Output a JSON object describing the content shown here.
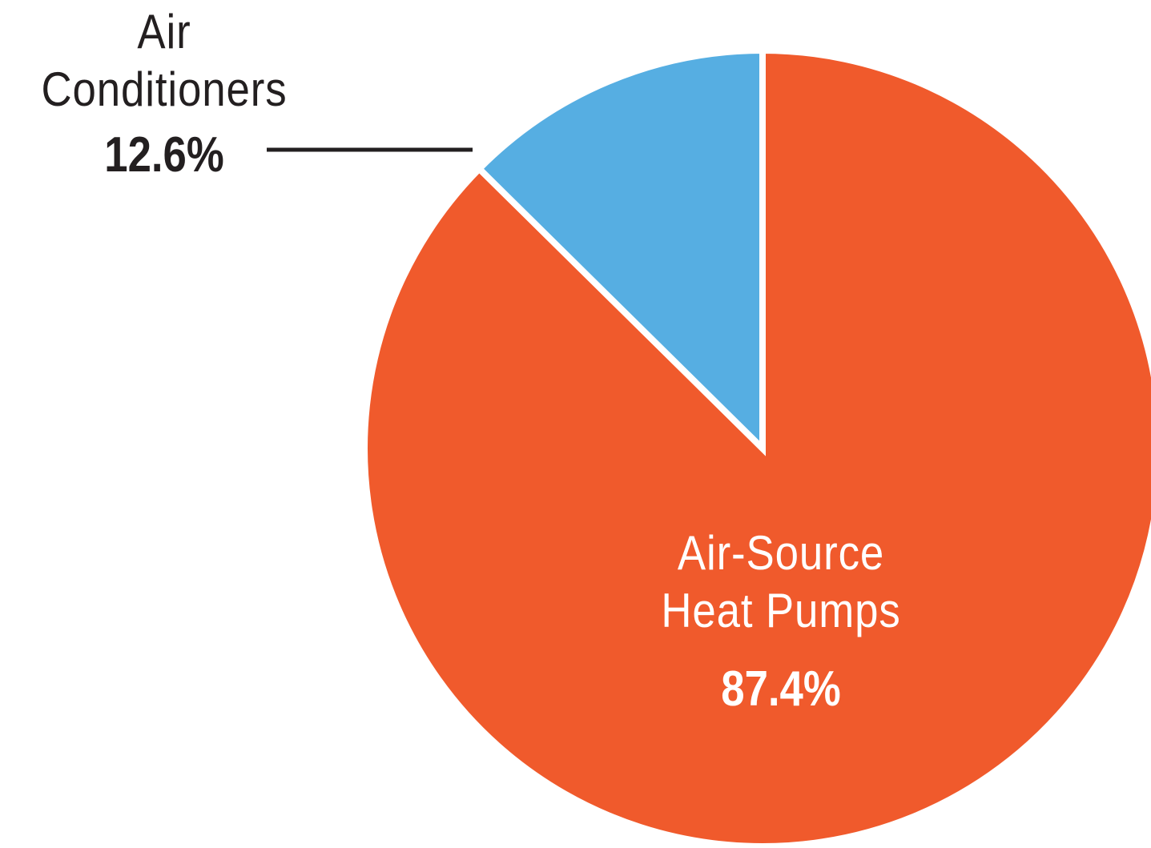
{
  "chart_data": {
    "type": "pie",
    "categories": [
      "Air Conditioners",
      "Air-Source Heat Pumps"
    ],
    "values": [
      12.6,
      87.4
    ],
    "value_labels": [
      "12.6%",
      "87.4%"
    ],
    "colors": [
      "#56aee2",
      "#f05a2c"
    ]
  }
}
